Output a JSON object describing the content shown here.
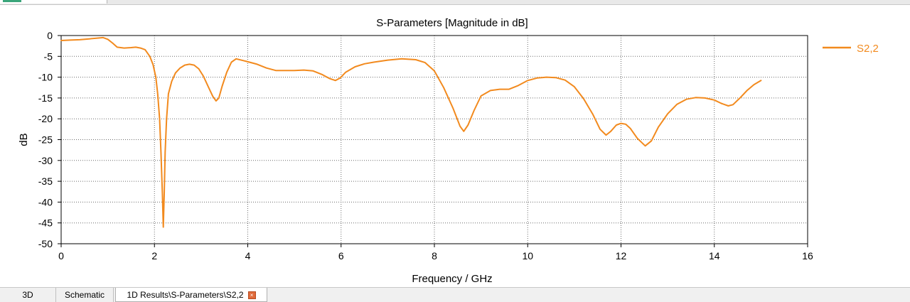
{
  "chart_data": {
    "type": "line",
    "title": "S-Parameters [Magnitude in dB]",
    "xlabel": "Frequency / GHz",
    "ylabel": "dB",
    "xlim": [
      0,
      16
    ],
    "ylim": [
      -50,
      0
    ],
    "x_ticks": [
      "0",
      "2",
      "4",
      "6",
      "8",
      "10",
      "12",
      "14",
      "16"
    ],
    "y_ticks": [
      "0",
      "-5",
      "-10",
      "-15",
      "-20",
      "-25",
      "-30",
      "-35",
      "-40",
      "-45",
      "-50"
    ],
    "grid": true,
    "legend_position": "right",
    "series": [
      {
        "name": "S2,2",
        "color": "#f28a1e",
        "points": [
          [
            0.0,
            -1.2
          ],
          [
            0.2,
            -1.1
          ],
          [
            0.4,
            -1.0
          ],
          [
            0.6,
            -0.8
          ],
          [
            0.8,
            -0.6
          ],
          [
            0.9,
            -0.5
          ],
          [
            1.0,
            -0.9
          ],
          [
            1.1,
            -1.8
          ],
          [
            1.2,
            -2.8
          ],
          [
            1.35,
            -3.0
          ],
          [
            1.5,
            -2.9
          ],
          [
            1.6,
            -2.8
          ],
          [
            1.7,
            -3.0
          ],
          [
            1.8,
            -3.4
          ],
          [
            1.9,
            -5.0
          ],
          [
            1.97,
            -7.0
          ],
          [
            2.03,
            -10.0
          ],
          [
            2.07,
            -14.0
          ],
          [
            2.11,
            -20.0
          ],
          [
            2.14,
            -28.0
          ],
          [
            2.17,
            -38.0
          ],
          [
            2.19,
            -46.0
          ],
          [
            2.21,
            -38.0
          ],
          [
            2.23,
            -28.0
          ],
          [
            2.26,
            -20.0
          ],
          [
            2.3,
            -14.0
          ],
          [
            2.37,
            -11.0
          ],
          [
            2.45,
            -9.0
          ],
          [
            2.55,
            -7.8
          ],
          [
            2.65,
            -7.1
          ],
          [
            2.75,
            -6.9
          ],
          [
            2.85,
            -7.1
          ],
          [
            2.95,
            -8.0
          ],
          [
            3.05,
            -9.8
          ],
          [
            3.15,
            -12.2
          ],
          [
            3.25,
            -14.6
          ],
          [
            3.32,
            -15.7
          ],
          [
            3.38,
            -15.0
          ],
          [
            3.45,
            -12.2
          ],
          [
            3.55,
            -8.8
          ],
          [
            3.65,
            -6.4
          ],
          [
            3.75,
            -5.6
          ],
          [
            3.9,
            -6.0
          ],
          [
            4.0,
            -6.3
          ],
          [
            4.2,
            -6.9
          ],
          [
            4.4,
            -7.8
          ],
          [
            4.6,
            -8.4
          ],
          [
            4.8,
            -8.4
          ],
          [
            5.0,
            -8.4
          ],
          [
            5.2,
            -8.3
          ],
          [
            5.4,
            -8.5
          ],
          [
            5.6,
            -9.4
          ],
          [
            5.75,
            -10.3
          ],
          [
            5.88,
            -10.8
          ],
          [
            5.98,
            -10.2
          ],
          [
            6.1,
            -8.8
          ],
          [
            6.3,
            -7.5
          ],
          [
            6.5,
            -6.8
          ],
          [
            6.7,
            -6.4
          ],
          [
            7.0,
            -5.9
          ],
          [
            7.3,
            -5.6
          ],
          [
            7.6,
            -5.8
          ],
          [
            7.8,
            -6.5
          ],
          [
            8.0,
            -8.5
          ],
          [
            8.2,
            -12.5
          ],
          [
            8.4,
            -17.5
          ],
          [
            8.55,
            -21.8
          ],
          [
            8.63,
            -23.0
          ],
          [
            8.72,
            -21.5
          ],
          [
            8.85,
            -18.0
          ],
          [
            9.0,
            -14.5
          ],
          [
            9.2,
            -13.2
          ],
          [
            9.4,
            -12.9
          ],
          [
            9.6,
            -12.9
          ],
          [
            9.8,
            -12.0
          ],
          [
            10.0,
            -10.8
          ],
          [
            10.2,
            -10.2
          ],
          [
            10.4,
            -10.0
          ],
          [
            10.6,
            -10.1
          ],
          [
            10.8,
            -10.7
          ],
          [
            11.0,
            -12.3
          ],
          [
            11.2,
            -15.2
          ],
          [
            11.4,
            -19.0
          ],
          [
            11.55,
            -22.5
          ],
          [
            11.68,
            -23.9
          ],
          [
            11.78,
            -23.0
          ],
          [
            11.9,
            -21.5
          ],
          [
            12.0,
            -21.1
          ],
          [
            12.1,
            -21.3
          ],
          [
            12.2,
            -22.3
          ],
          [
            12.35,
            -24.7
          ],
          [
            12.52,
            -26.5
          ],
          [
            12.65,
            -25.3
          ],
          [
            12.8,
            -22.0
          ],
          [
            13.0,
            -18.8
          ],
          [
            13.2,
            -16.5
          ],
          [
            13.4,
            -15.3
          ],
          [
            13.6,
            -14.9
          ],
          [
            13.8,
            -15.0
          ],
          [
            14.0,
            -15.5
          ],
          [
            14.15,
            -16.3
          ],
          [
            14.3,
            -16.9
          ],
          [
            14.4,
            -16.6
          ],
          [
            14.55,
            -15.0
          ],
          [
            14.7,
            -13.2
          ],
          [
            14.85,
            -11.8
          ],
          [
            15.0,
            -10.8
          ]
        ]
      }
    ]
  },
  "bottom_tabs": {
    "tab_3d": "3D",
    "tab_schematic": "Schematic",
    "tab_results": "1D Results\\S-Parameters\\S2,2",
    "close_glyph": "×"
  }
}
